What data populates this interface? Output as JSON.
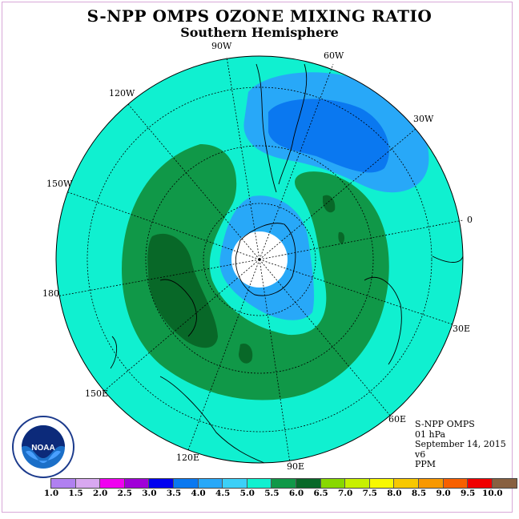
{
  "title": "S-NPP OMPS OZONE MIXING RATIO",
  "subtitle": "Southern Hemisphere",
  "longitude_labels": [
    "90W",
    "60W",
    "30W",
    "0",
    "30E",
    "60E",
    "90E",
    "120E",
    "150E",
    "180",
    "150W",
    "120W"
  ],
  "info": {
    "instrument": "S-NPP OMPS",
    "level": "01 hPa",
    "date": "September 14, 2015",
    "version": "v6",
    "units": "PPM"
  },
  "logo": {
    "text": "NOAA",
    "ring_text": "NATIONAL OCEANIC AND ATMOSPHERIC ADMINISTRATION · U.S. DEPARTMENT OF COMMERCE"
  },
  "legend": {
    "labels": [
      "1.0",
      "1.5",
      "2.0",
      "2.5",
      "3.0",
      "3.5",
      "4.0",
      "4.5",
      "5.0",
      "5.5",
      "6.0",
      "6.5",
      "7.0",
      "7.5",
      "8.0",
      "8.5",
      "9.0",
      "9.5",
      "10.0"
    ],
    "colors": [
      "#b080f0",
      "#d8a8f0",
      "#f000f0",
      "#a000d8",
      "#0000f0",
      "#0a78f0",
      "#28a8f8",
      "#3cd0f8",
      "#10f0d0",
      "#109848",
      "#086828",
      "#88d800",
      "#c8f000",
      "#f8f800",
      "#f8c800",
      "#f89800",
      "#f86000",
      "#f00000",
      "#886040"
    ]
  },
  "colors": {
    "background_fill": "#10f0d0",
    "band_fill": "#109848",
    "band_core": "#086828",
    "low_fill": "#28a8f8",
    "lower_fill": "#0a78f0",
    "pole_fill": "#ffffff"
  }
}
